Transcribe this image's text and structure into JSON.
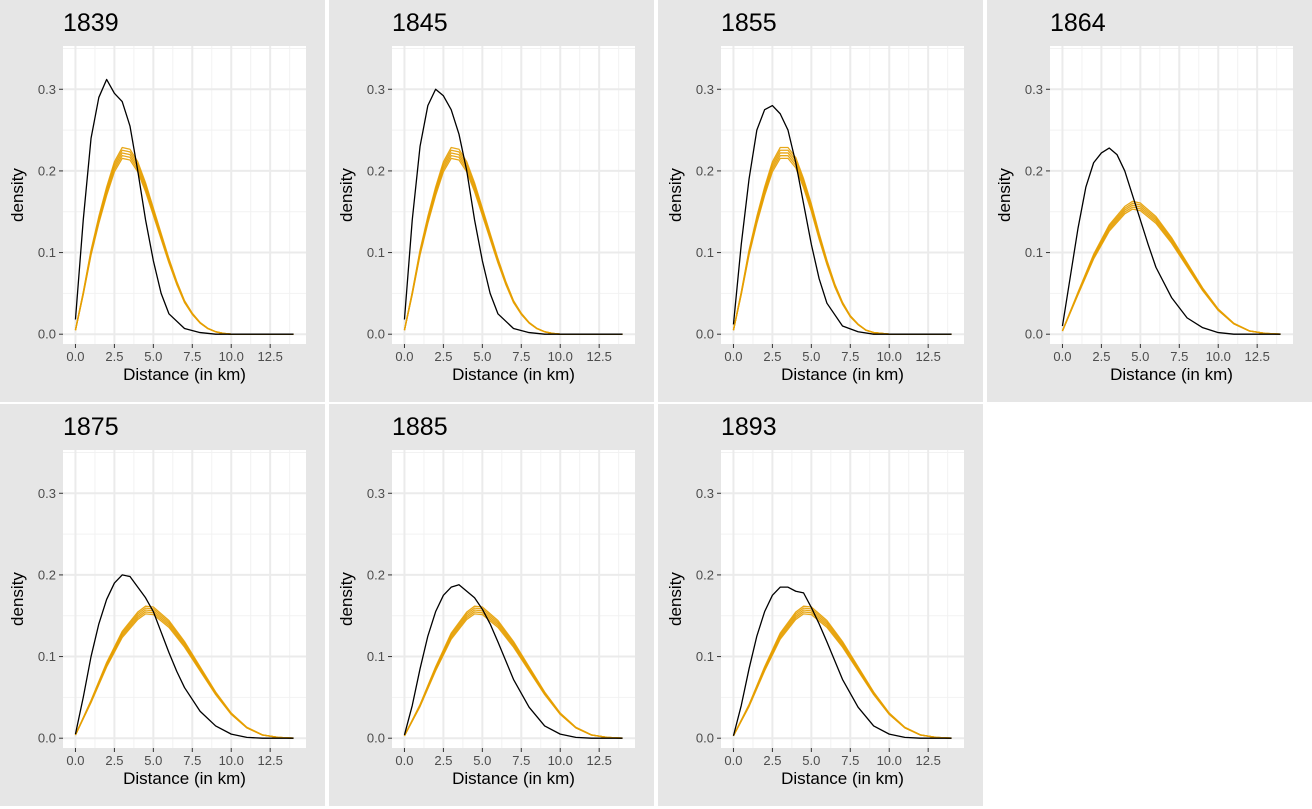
{
  "chart_data": {
    "type": "line",
    "xlabel": "Distance (in km)",
    "ylabel": "density",
    "xlim": [
      -0.8,
      14.8
    ],
    "ylim": [
      -0.012,
      0.353
    ],
    "xticks": [
      0,
      2.5,
      5,
      7.5,
      10,
      12.5
    ],
    "xtick_labels": [
      "0.0",
      "2.5",
      "5.0",
      "7.5",
      "10.0",
      "12.5"
    ],
    "yticks": [
      0,
      0.1,
      0.2,
      0.3
    ],
    "ytick_labels": [
      "0.0",
      "0.1",
      "0.2",
      "0.3"
    ],
    "grid": true,
    "colors": {
      "observed": "#000000",
      "simulated": "#e69f00",
      "panel_bg": "#e6e6e6",
      "plot_bg": "#ffffff",
      "grid": "#ebebeb"
    },
    "panels": [
      {
        "title": "1839",
        "observed": {
          "x": [
            0,
            0.5,
            1,
            1.5,
            2,
            2.5,
            3,
            3.5,
            4,
            4.5,
            5,
            5.5,
            6,
            7,
            8,
            9,
            10,
            14
          ],
          "y": [
            0.018,
            0.14,
            0.24,
            0.29,
            0.312,
            0.295,
            0.285,
            0.255,
            0.2,
            0.14,
            0.09,
            0.05,
            0.025,
            0.007,
            0.002,
            0,
            0,
            0
          ]
        },
        "simulated": {
          "x": [
            0,
            0.5,
            1,
            1.5,
            2,
            2.5,
            3,
            3.5,
            4,
            4.5,
            5,
            5.5,
            6,
            6.5,
            7,
            7.5,
            8,
            8.5,
            9,
            9.5,
            10,
            14
          ],
          "y": [
            0.005,
            0.05,
            0.1,
            0.14,
            0.175,
            0.205,
            0.222,
            0.22,
            0.205,
            0.18,
            0.15,
            0.12,
            0.09,
            0.063,
            0.04,
            0.025,
            0.014,
            0.007,
            0.003,
            0.001,
            0,
            0
          ]
        }
      },
      {
        "title": "1845",
        "observed": {
          "x": [
            0,
            0.5,
            1,
            1.5,
            2,
            2.5,
            3,
            3.5,
            4,
            4.5,
            5,
            5.5,
            6,
            7,
            8,
            9,
            10,
            14
          ],
          "y": [
            0.018,
            0.14,
            0.23,
            0.28,
            0.3,
            0.292,
            0.275,
            0.245,
            0.2,
            0.14,
            0.09,
            0.05,
            0.025,
            0.007,
            0.002,
            0,
            0,
            0
          ]
        },
        "simulated": {
          "x": [
            0,
            0.5,
            1,
            1.5,
            2,
            2.5,
            3,
            3.5,
            4,
            4.5,
            5,
            5.5,
            6,
            6.5,
            7,
            7.5,
            8,
            8.5,
            9,
            9.5,
            10,
            14
          ],
          "y": [
            0.005,
            0.05,
            0.1,
            0.14,
            0.175,
            0.205,
            0.222,
            0.22,
            0.205,
            0.18,
            0.15,
            0.12,
            0.09,
            0.063,
            0.04,
            0.025,
            0.014,
            0.007,
            0.003,
            0.001,
            0,
            0
          ]
        }
      },
      {
        "title": "1855",
        "observed": {
          "x": [
            0,
            0.5,
            1,
            1.5,
            2,
            2.5,
            3,
            3.5,
            4,
            4.5,
            5,
            5.5,
            6,
            7,
            8,
            9,
            10,
            14
          ],
          "y": [
            0.012,
            0.11,
            0.19,
            0.25,
            0.275,
            0.28,
            0.27,
            0.25,
            0.21,
            0.16,
            0.11,
            0.068,
            0.038,
            0.01,
            0.003,
            0,
            0,
            0
          ]
        },
        "simulated": {
          "x": [
            0,
            0.5,
            1,
            1.5,
            2,
            2.5,
            3,
            3.5,
            4,
            4.5,
            5,
            5.5,
            6,
            6.5,
            7,
            7.5,
            8,
            8.5,
            9,
            9.5,
            10,
            14
          ],
          "y": [
            0.005,
            0.05,
            0.1,
            0.14,
            0.175,
            0.205,
            0.222,
            0.222,
            0.21,
            0.185,
            0.155,
            0.12,
            0.088,
            0.06,
            0.038,
            0.022,
            0.012,
            0.005,
            0.002,
            0.001,
            0,
            0
          ]
        }
      },
      {
        "title": "1864",
        "observed": {
          "x": [
            0,
            0.5,
            1,
            1.5,
            2,
            2.5,
            3,
            3.5,
            4,
            4.5,
            5,
            5.5,
            6,
            7,
            8,
            9,
            10,
            11,
            12,
            14
          ],
          "y": [
            0.01,
            0.07,
            0.13,
            0.18,
            0.21,
            0.222,
            0.228,
            0.22,
            0.2,
            0.17,
            0.14,
            0.11,
            0.082,
            0.045,
            0.02,
            0.008,
            0.002,
            0,
            0,
            0
          ]
        },
        "simulated": {
          "x": [
            0,
            1,
            2,
            3,
            4,
            4.5,
            5,
            6,
            7,
            8,
            9,
            10,
            11,
            12,
            13,
            14
          ],
          "y": [
            0.004,
            0.05,
            0.095,
            0.13,
            0.152,
            0.158,
            0.156,
            0.14,
            0.115,
            0.085,
            0.055,
            0.03,
            0.013,
            0.004,
            0.001,
            0
          ]
        }
      },
      {
        "title": "1875",
        "observed": {
          "x": [
            0,
            0.5,
            1,
            1.5,
            2,
            2.5,
            3,
            3.5,
            4,
            4.5,
            5,
            5.5,
            6,
            6.5,
            7,
            8,
            9,
            10,
            11,
            12,
            14
          ],
          "y": [
            0.005,
            0.05,
            0.1,
            0.14,
            0.17,
            0.19,
            0.2,
            0.198,
            0.185,
            0.172,
            0.155,
            0.13,
            0.105,
            0.082,
            0.062,
            0.033,
            0.015,
            0.005,
            0.001,
            0,
            0
          ]
        },
        "simulated": {
          "x": [
            0,
            1,
            2,
            3,
            4,
            4.5,
            5,
            6,
            7,
            8,
            9,
            10,
            11,
            12,
            13,
            14
          ],
          "y": [
            0.004,
            0.045,
            0.09,
            0.127,
            0.15,
            0.157,
            0.156,
            0.14,
            0.115,
            0.085,
            0.055,
            0.03,
            0.013,
            0.004,
            0.001,
            0
          ]
        }
      },
      {
        "title": "1885",
        "observed": {
          "x": [
            0,
            0.5,
            1,
            1.5,
            2,
            2.5,
            3,
            3.5,
            4,
            4.5,
            5,
            5.5,
            6,
            6.5,
            7,
            8,
            9,
            10,
            11,
            12,
            14
          ],
          "y": [
            0.004,
            0.04,
            0.085,
            0.125,
            0.155,
            0.175,
            0.185,
            0.188,
            0.18,
            0.172,
            0.158,
            0.14,
            0.118,
            0.095,
            0.072,
            0.038,
            0.015,
            0.005,
            0.001,
            0,
            0
          ]
        },
        "simulated": {
          "x": [
            0,
            1,
            2,
            3,
            4,
            4.5,
            5,
            6,
            7,
            8,
            9,
            10,
            11,
            12,
            13,
            14
          ],
          "y": [
            0.003,
            0.04,
            0.085,
            0.125,
            0.15,
            0.157,
            0.156,
            0.14,
            0.115,
            0.085,
            0.055,
            0.03,
            0.013,
            0.004,
            0.001,
            0
          ]
        }
      },
      {
        "title": "1893",
        "observed": {
          "x": [
            0,
            0.5,
            1,
            1.5,
            2,
            2.5,
            3,
            3.5,
            4,
            4.5,
            5,
            5.5,
            6,
            6.5,
            7,
            8,
            9,
            10,
            11,
            12,
            14
          ],
          "y": [
            0.003,
            0.04,
            0.085,
            0.125,
            0.155,
            0.175,
            0.185,
            0.185,
            0.18,
            0.178,
            0.16,
            0.14,
            0.118,
            0.095,
            0.072,
            0.038,
            0.015,
            0.005,
            0.001,
            0,
            0
          ]
        },
        "simulated": {
          "x": [
            0,
            1,
            2,
            3,
            4,
            4.5,
            5,
            6,
            7,
            8,
            9,
            10,
            11,
            12,
            13,
            14
          ],
          "y": [
            0.003,
            0.04,
            0.085,
            0.125,
            0.15,
            0.157,
            0.156,
            0.14,
            0.115,
            0.085,
            0.055,
            0.03,
            0.013,
            0.004,
            0.001,
            0
          ]
        }
      }
    ]
  }
}
